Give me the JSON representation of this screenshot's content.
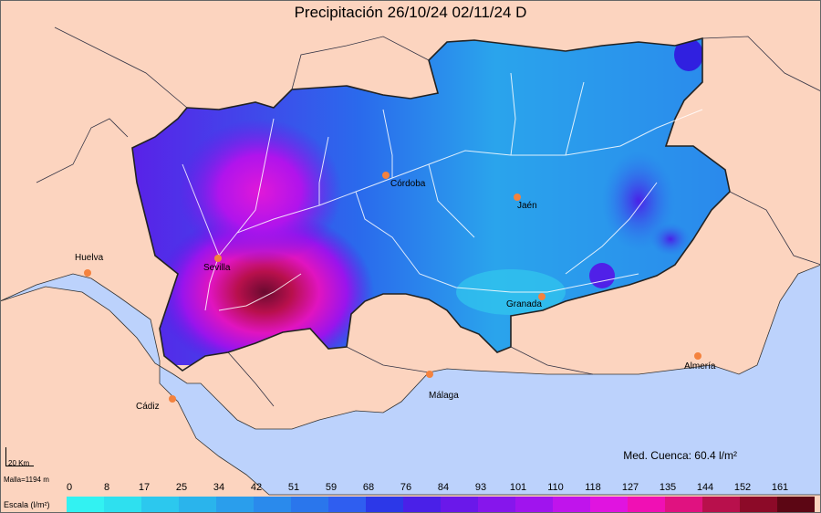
{
  "title": "Precipitación 26/10/24 02/11/24 D",
  "cities": [
    {
      "name": "Huelva",
      "icon": "city-dot"
    },
    {
      "name": "Sevilla",
      "icon": "city-dot"
    },
    {
      "name": "Córdoba",
      "icon": "city-dot"
    },
    {
      "name": "Jaén",
      "icon": "city-dot"
    },
    {
      "name": "Granada",
      "icon": "city-dot"
    },
    {
      "name": "Almería",
      "icon": "city-dot"
    },
    {
      "name": "Málaga",
      "icon": "city-dot"
    },
    {
      "name": "Cádiz",
      "icon": "city-dot"
    }
  ],
  "mean_label": "Med. Cuenca: 60.4 l/m²",
  "scale_km": "20 Km",
  "grid_label": "Malla=1194 m",
  "legend": {
    "title": "Escala (l/m²)",
    "ticks": [
      "0",
      "8",
      "17",
      "25",
      "34",
      "42",
      "51",
      "59",
      "68",
      "76",
      "84",
      "93",
      "101",
      "110",
      "118",
      "127",
      "135",
      "144",
      "152",
      "161"
    ],
    "colors": [
      "#32f2f2",
      "#2ee0ef",
      "#2cc8ee",
      "#2ab4ec",
      "#2a9eec",
      "#2a8aec",
      "#2a76ec",
      "#2f5ef0",
      "#2c38e8",
      "#4a20e8",
      "#6a18ea",
      "#8616ec",
      "#a014ee",
      "#c014ec",
      "#e014e0",
      "#f010b4",
      "#e01280",
      "#b8104c",
      "#8c0a28",
      "#5c0614"
    ]
  },
  "colors": {
    "land": "#fcd4bf",
    "sea": "#bcd2fc",
    "basin_low": "#3aa8f0",
    "basin_high": "#7a0c3c"
  }
}
